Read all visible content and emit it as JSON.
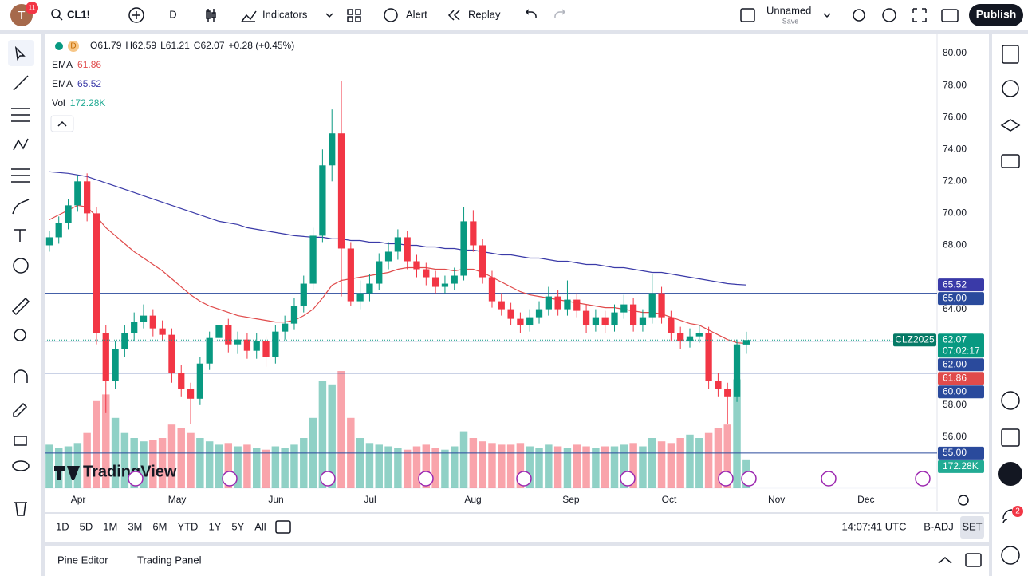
{
  "ui": {
    "avatar": "T",
    "notifications": "11",
    "symbol": "CL1!",
    "interval": "D",
    "indicators": "Indicators",
    "alert": "Alert",
    "replay": "Replay",
    "layout_name": "Unnamed",
    "save": "Save",
    "publish": "Publish",
    "logo": "TradingView",
    "timeframes": [
      "1D",
      "5D",
      "1M",
      "3M",
      "6M",
      "YTD",
      "1Y",
      "5Y",
      "All"
    ],
    "clock": "14:07:41 UTC",
    "adj": "B-ADJ",
    "session": "SET",
    "panels": [
      "Pine Editor",
      "Trading Panel"
    ],
    "sidebar_badge": "2"
  },
  "chart_data": {
    "type": "candlestick",
    "symbol_code": "CLZ2025",
    "countdown": "07:02:17",
    "ohlc_labels": [
      "O",
      "H",
      "L",
      "C"
    ],
    "change_label": "+0.28 (+0.45%)",
    "up_color": "#089981",
    "down_color": "#f23645",
    "open": [
      68.0,
      68.5,
      69.4,
      70.5,
      72.0,
      70.0,
      62.5,
      59.5,
      61.5,
      62.5,
      63.2,
      63.6,
      62.8,
      62.4,
      60.0,
      59.0,
      58.4,
      60.6,
      62.2,
      63.0,
      61.8,
      62.1,
      61.4,
      62.0,
      61.0,
      62.6,
      63.1,
      64.2,
      65.6,
      68.6,
      73.0,
      75.0,
      67.8,
      64.5,
      65.0,
      65.6,
      67.0,
      67.6,
      68.5,
      67.0,
      66.5,
      66.0,
      65.4,
      65.6,
      66.1,
      69.5,
      68.0,
      66.0,
      64.5,
      64.0,
      63.4,
      63.0,
      63.5,
      64.0,
      64.8,
      64.0,
      64.6,
      63.9,
      63.0,
      63.5,
      63.0,
      63.8,
      64.3,
      63.0,
      63.5,
      65.0,
      63.5,
      62.5,
      62.0,
      62.3,
      62.5,
      59.5,
      59.0,
      58.5,
      61.79
    ],
    "high": [
      68.9,
      69.8,
      70.9,
      72.4,
      72.5,
      70.4,
      63.0,
      62.0,
      63.0,
      63.8,
      64.3,
      64.0,
      63.3,
      62.8,
      60.5,
      59.4,
      61.0,
      62.6,
      63.6,
      63.4,
      62.6,
      62.5,
      62.5,
      62.3,
      63.0,
      63.6,
      64.7,
      66.1,
      69.1,
      74.0,
      76.5,
      78.3,
      68.2,
      65.8,
      66.2,
      67.5,
      68.2,
      69.0,
      68.9,
      67.4,
      66.9,
      66.4,
      66.1,
      66.6,
      70.4,
      70.2,
      68.4,
      66.4,
      65.0,
      64.4,
      63.8,
      64.0,
      64.5,
      65.4,
      65.2,
      65.8,
      65.0,
      64.3,
      64.0,
      63.9,
      64.3,
      64.9,
      64.7,
      64.0,
      66.2,
      65.4,
      63.9,
      62.9,
      62.8,
      63.0,
      62.9,
      60.0,
      59.4,
      62.1,
      62.59
    ],
    "low": [
      67.6,
      68.1,
      69.0,
      70.1,
      69.5,
      61.8,
      57.5,
      59.0,
      61.0,
      62.0,
      62.8,
      62.3,
      62.0,
      59.4,
      58.5,
      56.8,
      58.0,
      60.2,
      61.8,
      61.3,
      61.2,
      60.9,
      60.9,
      60.4,
      60.6,
      62.1,
      62.7,
      63.8,
      65.2,
      68.2,
      72.0,
      64.8,
      64.2,
      64.0,
      64.5,
      65.2,
      66.5,
      67.1,
      66.5,
      66.0,
      65.5,
      65.0,
      65.0,
      65.2,
      65.8,
      67.6,
      65.6,
      64.1,
      63.6,
      63.0,
      62.5,
      62.6,
      63.1,
      63.6,
      63.6,
      63.6,
      63.5,
      62.5,
      62.6,
      62.5,
      62.6,
      63.4,
      62.6,
      62.6,
      63.1,
      63.1,
      62.0,
      61.5,
      61.6,
      61.9,
      59.0,
      58.5,
      56.8,
      58.2,
      61.21
    ],
    "close": [
      68.5,
      69.4,
      70.5,
      72.0,
      70.0,
      62.5,
      59.5,
      61.5,
      62.5,
      63.2,
      63.6,
      62.8,
      62.4,
      60.0,
      59.0,
      58.4,
      60.6,
      62.2,
      63.0,
      61.8,
      62.1,
      61.4,
      62.0,
      61.0,
      62.6,
      63.1,
      64.2,
      65.6,
      68.6,
      73.0,
      75.0,
      67.8,
      64.5,
      65.0,
      65.6,
      67.0,
      67.6,
      68.5,
      67.0,
      66.5,
      66.0,
      65.4,
      65.6,
      66.1,
      69.5,
      68.0,
      66.0,
      64.5,
      64.0,
      63.4,
      63.0,
      63.5,
      64.0,
      64.8,
      64.0,
      64.6,
      63.9,
      63.0,
      63.5,
      63.0,
      63.8,
      64.3,
      63.0,
      63.5,
      65.0,
      63.5,
      62.5,
      62.0,
      62.3,
      62.5,
      59.5,
      59.0,
      58.5,
      61.8,
      62.07
    ],
    "xlim": [
      -0.5,
      94.25
    ],
    "xticks": [
      {
        "value": 3.06,
        "label": "Apr"
      },
      {
        "value": 13.56,
        "label": "May"
      },
      {
        "value": 24.06,
        "label": "Jun"
      },
      {
        "value": 34.05,
        "label": "Jul"
      },
      {
        "value": 44.97,
        "label": "Aug"
      },
      {
        "value": 55.38,
        "label": "Sep"
      },
      {
        "value": 65.8,
        "label": "Oct"
      },
      {
        "value": 77.2,
        "label": "Nov"
      },
      {
        "value": 86.7,
        "label": "Dec"
      }
    ],
    "ylim": [
      52.8,
      81.1
    ],
    "yticks": [
      {
        "value": 80,
        "label": "80.00"
      },
      {
        "value": 78,
        "label": "78.00"
      },
      {
        "value": 76,
        "label": "76.00"
      },
      {
        "value": 74,
        "label": "74.00"
      },
      {
        "value": 72,
        "label": "72.00"
      },
      {
        "value": 70,
        "label": "70.00"
      },
      {
        "value": 68,
        "label": "68.00"
      },
      {
        "value": 64,
        "label": "64.00"
      },
      {
        "value": 58,
        "label": "58.00"
      },
      {
        "value": 56,
        "label": "56.00"
      }
    ],
    "hlines": [
      {
        "value": 65,
        "label": "65.00"
      },
      {
        "value": 62,
        "label": "62.00"
      },
      {
        "value": 60,
        "label": "60.00"
      },
      {
        "value": 55,
        "label": "55.00"
      }
    ],
    "hline_color": "#2a4a9c",
    "emas": [
      {
        "name": "EMA",
        "color": "#e04b4b",
        "values": [
          69.6,
          69.9,
          70.2,
          70.5,
          70.4,
          69.8,
          69.1,
          68.6,
          68.1,
          67.6,
          67.2,
          66.8,
          66.4,
          65.9,
          65.4,
          64.9,
          64.5,
          64.2,
          64.0,
          63.8,
          63.6,
          63.5,
          63.4,
          63.3,
          63.2,
          63.2,
          63.3,
          63.6,
          64.0,
          64.7,
          65.5,
          65.8,
          65.9,
          66.0,
          66.1,
          66.2,
          66.3,
          66.5,
          66.6,
          66.6,
          66.6,
          66.5,
          66.5,
          66.4,
          66.5,
          66.5,
          66.3,
          66.0,
          65.7,
          65.4,
          65.1,
          64.9,
          64.8,
          64.7,
          64.6,
          64.5,
          64.4,
          64.3,
          64.2,
          64.1,
          64.1,
          64.0,
          63.9,
          63.8,
          63.8,
          63.7,
          63.5,
          63.3,
          63.1,
          63.0,
          62.7,
          62.4,
          62.1,
          61.9,
          61.86
        ]
      },
      {
        "name": "EMA",
        "color": "#3a3aa8",
        "values": [
          72.6,
          72.55,
          72.5,
          72.4,
          72.3,
          72.1,
          71.9,
          71.7,
          71.5,
          71.3,
          71.1,
          70.9,
          70.7,
          70.5,
          70.3,
          70.1,
          69.9,
          69.7,
          69.5,
          69.4,
          69.3,
          69.1,
          69.0,
          68.9,
          68.8,
          68.7,
          68.6,
          68.55,
          68.5,
          68.5,
          68.4,
          68.4,
          68.3,
          68.3,
          68.2,
          68.2,
          68.1,
          68.1,
          68.0,
          68.0,
          67.9,
          67.9,
          67.8,
          67.8,
          67.7,
          67.7,
          67.6,
          67.5,
          67.4,
          67.4,
          67.3,
          67.2,
          67.2,
          67.1,
          67.0,
          67.0,
          66.9,
          66.8,
          66.8,
          66.7,
          66.6,
          66.6,
          66.5,
          66.4,
          66.3,
          66.3,
          66.2,
          66.1,
          66.0,
          65.9,
          65.8,
          65.7,
          65.6,
          65.55,
          65.52
        ]
      }
    ],
    "volume": {
      "name": "Vol",
      "color": "#22ab94",
      "ylim": [
        0,
        2700
      ],
      "values": [
        260,
        240,
        250,
        270,
        330,
        520,
        560,
        420,
        330,
        300,
        280,
        290,
        300,
        380,
        360,
        330,
        300,
        280,
        260,
        270,
        250,
        260,
        240,
        230,
        250,
        240,
        260,
        300,
        420,
        640,
        620,
        700,
        420,
        300,
        270,
        260,
        250,
        240,
        230,
        250,
        260,
        240,
        230,
        250,
        340,
        300,
        280,
        270,
        260,
        260,
        270,
        250,
        240,
        260,
        250,
        240,
        260,
        250,
        240,
        250,
        250,
        260,
        270,
        250,
        300,
        280,
        270,
        300,
        320,
        300,
        330,
        360,
        380,
        650,
        172.28
      ],
      "value_labels": [
        null,
        null,
        null,
        null,
        null,
        null,
        null,
        null,
        null,
        null,
        null,
        null,
        null,
        null,
        null,
        null,
        null,
        null,
        null,
        null,
        null,
        null,
        null,
        null,
        null,
        null,
        null,
        null,
        null,
        null,
        null,
        null,
        null,
        null,
        null,
        null,
        null,
        null,
        null,
        null,
        null,
        null,
        null,
        null,
        null,
        null,
        null,
        null,
        null,
        null,
        null,
        null,
        null,
        null,
        null,
        null,
        null,
        null,
        null,
        null,
        null,
        null,
        null,
        null,
        null,
        null,
        null,
        null,
        null,
        null,
        null,
        null,
        null,
        null,
        "172.28K"
      ]
    }
  }
}
